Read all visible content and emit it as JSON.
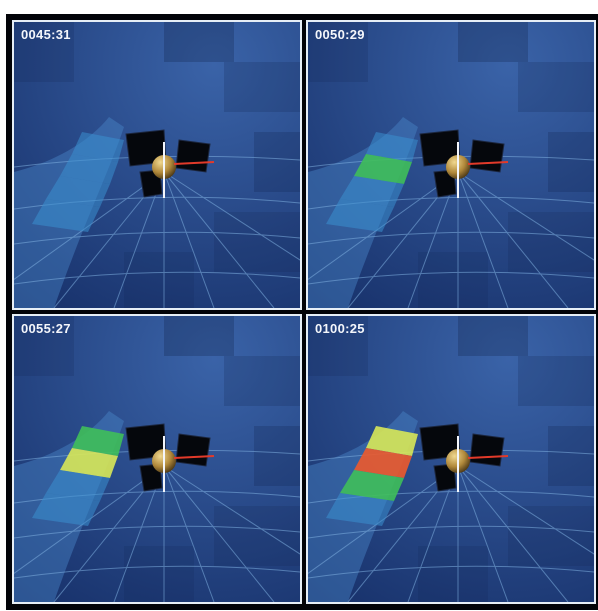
{
  "figure": {
    "panels": [
      {
        "timestamp": "0045:31",
        "heat_level": 0
      },
      {
        "timestamp": "0050:29",
        "heat_level": 1
      },
      {
        "timestamp": "0055:27",
        "heat_level": 2
      },
      {
        "timestamp": "0100:25",
        "heat_level": 3
      }
    ],
    "colors": {
      "background": "#020308",
      "panel_border": "#e6eef6",
      "sky_dark": "#162f68",
      "sky_light": "#3a63a8",
      "grid_line": "#7fb0e0",
      "band_cool": "#3a8fd0",
      "band_green": "#3fbf5a",
      "band_yellow": "#d8e858",
      "band_red": "#ec5a2c",
      "axis_red": "#e23a2a",
      "axis_white": "#f4f6fb",
      "sphere": "#b0883a"
    }
  }
}
